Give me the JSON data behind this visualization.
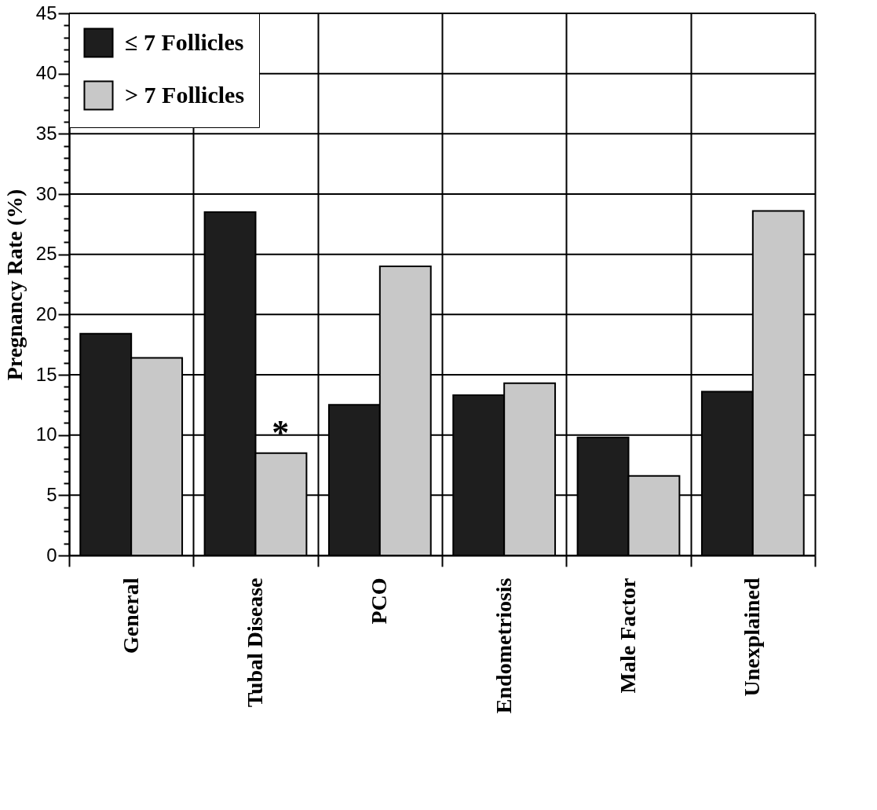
{
  "chart_data": {
    "type": "bar",
    "ylabel": "Pregnancy Rate (%)",
    "categories": [
      "General",
      "Tubal Disease",
      "PCO",
      "Endometriosis",
      "Male Factor",
      "Unexplained"
    ],
    "series": [
      {
        "name": "≤ 7 Follicles",
        "color": "#1e1e1e",
        "values": [
          18.4,
          28.5,
          12.5,
          13.3,
          9.8,
          13.6
        ]
      },
      {
        "name": "> 7 Follicles",
        "color": "#c8c8c8",
        "values": [
          16.4,
          8.5,
          24.0,
          14.3,
          6.6,
          28.6
        ]
      }
    ],
    "ylim": [
      0,
      45
    ],
    "yticks": [
      0,
      {
        "value": 1,
        "label": null
      },
      {
        "value": 2,
        "label": null
      },
      {
        "value": 3,
        "label": null
      },
      {
        "value": 4,
        "label": null
      },
      5,
      {
        "value": 6,
        "label": null
      },
      {
        "value": 7,
        "label": null
      },
      {
        "value": 8,
        "label": null
      },
      {
        "value": 9,
        "label": null
      },
      10,
      {
        "value": 11,
        "label": null
      },
      {
        "value": 12,
        "label": null
      },
      {
        "value": 13,
        "label": null
      },
      {
        "value": 14,
        "label": null
      },
      15,
      {
        "value": 16,
        "label": null
      },
      {
        "value": 17,
        "label": null
      },
      {
        "value": 18,
        "label": null
      },
      {
        "value": 19,
        "label": null
      },
      20,
      {
        "value": 21,
        "label": null
      },
      {
        "value": 22,
        "label": null
      },
      {
        "value": 23,
        "label": null
      },
      {
        "value": 24,
        "label": null
      },
      25,
      {
        "value": 26,
        "label": null
      },
      {
        "value": 27,
        "label": null
      },
      {
        "value": 28,
        "label": null
      },
      {
        "value": 29,
        "label": null
      },
      30,
      {
        "value": 31,
        "label": null
      },
      {
        "value": 32,
        "label": null
      },
      {
        "value": 33,
        "label": null
      },
      {
        "value": 34,
        "label": null
      },
      35,
      {
        "value": 36,
        "label": null
      },
      {
        "value": 37,
        "label": null
      },
      {
        "value": 38,
        "label": null
      },
      {
        "value": 39,
        "label": null
      },
      40,
      {
        "value": 41,
        "label": null
      },
      {
        "value": 42,
        "label": null
      },
      {
        "value": 43,
        "label": null
      },
      {
        "value": 44,
        "label": null
      },
      45
    ],
    "grid": true,
    "legend": "top left",
    "annotations": [
      {
        "text": "*",
        "x": "Tubal Disease",
        "y": 11
      }
    ]
  }
}
